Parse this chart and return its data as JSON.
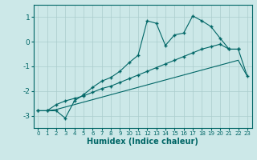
{
  "xlabel": "Humidex (Indice chaleur)",
  "ylabel": "",
  "background_color": "#cce8e8",
  "grid_color": "#aacccc",
  "line_color": "#006666",
  "xlim": [
    -0.5,
    23.5
  ],
  "ylim": [
    -3.5,
    1.5
  ],
  "yticks": [
    -3,
    -2,
    -1,
    0,
    1
  ],
  "xticks": [
    0,
    1,
    2,
    3,
    4,
    5,
    6,
    7,
    8,
    9,
    10,
    11,
    12,
    13,
    14,
    15,
    16,
    17,
    18,
    19,
    20,
    21,
    22,
    23
  ],
  "line1_x": [
    0,
    1,
    2,
    3,
    4,
    5,
    6,
    7,
    8,
    9,
    10,
    11,
    12,
    13,
    14,
    15,
    16,
    17,
    18,
    19,
    20,
    21,
    22
  ],
  "line1_y": [
    -2.8,
    -2.8,
    -2.8,
    -3.1,
    -2.4,
    -2.15,
    -1.85,
    -1.6,
    -1.45,
    -1.2,
    -0.85,
    -0.55,
    0.85,
    0.75,
    -0.15,
    0.28,
    0.35,
    1.05,
    0.85,
    0.62,
    0.15,
    -0.3,
    -0.3
  ],
  "line2_x": [
    0,
    1,
    2,
    3,
    4,
    5,
    6,
    7,
    8,
    9,
    10,
    11,
    12,
    13,
    14,
    15,
    16,
    17,
    18,
    19,
    20,
    21,
    22,
    23
  ],
  "line2_y": [
    -2.8,
    -2.8,
    -2.55,
    -2.4,
    -2.3,
    -2.2,
    -2.05,
    -1.9,
    -1.8,
    -1.65,
    -1.5,
    -1.35,
    -1.2,
    -1.05,
    -0.9,
    -0.75,
    -0.6,
    -0.45,
    -0.3,
    -0.2,
    -0.1,
    -0.3,
    -0.3,
    -1.4
  ],
  "line3_x": [
    0,
    1,
    2,
    3,
    4,
    5,
    6,
    7,
    8,
    9,
    10,
    11,
    12,
    13,
    14,
    15,
    16,
    17,
    18,
    19,
    20,
    21,
    22,
    23
  ],
  "line3_y": [
    -2.8,
    -2.8,
    -2.75,
    -2.65,
    -2.55,
    -2.45,
    -2.35,
    -2.25,
    -2.15,
    -2.05,
    -1.95,
    -1.85,
    -1.75,
    -1.65,
    -1.55,
    -1.45,
    -1.35,
    -1.25,
    -1.15,
    -1.05,
    -0.95,
    -0.85,
    -0.75,
    -1.4
  ]
}
